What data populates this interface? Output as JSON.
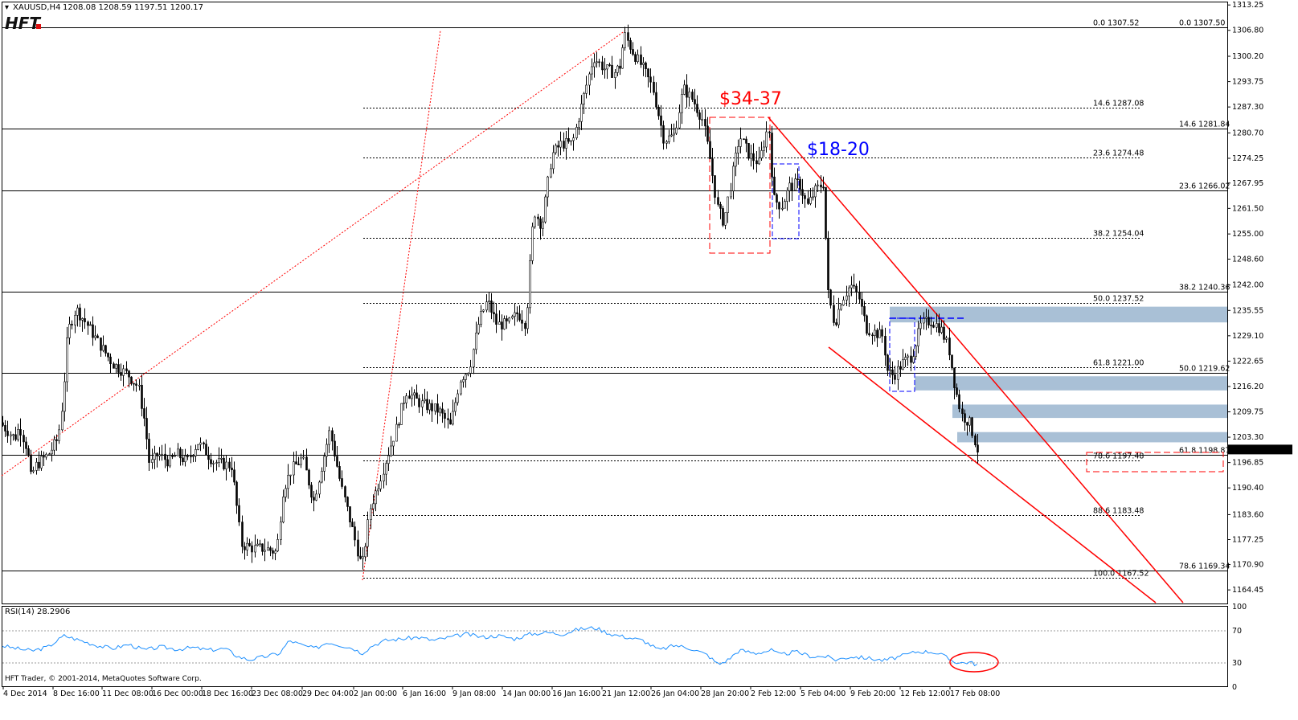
{
  "header": {
    "symbol": "XAUUSD,H4",
    "ohlc": "1208.08 1208.59 1197.51 1200.17",
    "logo": "HFT"
  },
  "indicator_label": "RSI(14) 28.2906",
  "copyright": "HFT Trader, © 2001-2014, MetaQuotes Software Corp.",
  "annotations": {
    "big_move": "$34-37",
    "small_move": "$18-20"
  },
  "colors": {
    "red": "#ff0000",
    "blue": "#0000ff",
    "zone": "#a9c0d6",
    "rsi": "#1e90ff"
  },
  "chart_data": {
    "type": "candlestick",
    "instrument": "XAUUSD",
    "timeframe": "H4",
    "price_axis": {
      "ylim": [
        1161.0,
        1313.9
      ],
      "ticks": [
        "1313.25",
        "1306.80",
        "1300.20",
        "1293.75",
        "1287.30",
        "1280.70",
        "1274.25",
        "1267.95",
        "1261.50",
        "1255.00",
        "1248.60",
        "1242.00",
        "1235.55",
        "1229.10",
        "1222.65",
        "1216.20",
        "1209.75",
        "1203.30",
        "1196.85",
        "1190.40",
        "1183.60",
        "1177.25",
        "1170.90",
        "1164.45"
      ],
      "current_price": "1200.17"
    },
    "time_axis": {
      "labels": [
        "4 Dec 2014",
        "8 Dec 16:00",
        "11 Dec 08:00",
        "16 Dec 00:00",
        "18 Dec 16:00",
        "23 Dec 08:00",
        "29 Dec 04:00",
        "2 Jan 00:00",
        "6 Jan 16:00",
        "9 Jan 08:00",
        "14 Jan 00:00",
        "16 Jan 16:00",
        "21 Jan 12:00",
        "26 Jan 04:00",
        "28 Jan 20:00",
        "2 Feb 12:00",
        "5 Feb 04:00",
        "9 Feb 20:00",
        "12 Feb 12:00",
        "17 Feb 08:00"
      ]
    },
    "price_path": [
      [
        0,
        1207
      ],
      [
        18,
        1203
      ],
      [
        24,
        1206
      ],
      [
        34,
        1200
      ],
      [
        38,
        1193
      ],
      [
        44,
        1196
      ],
      [
        60,
        1199
      ],
      [
        72,
        1203
      ],
      [
        78,
        1213
      ],
      [
        84,
        1230
      ],
      [
        94,
        1236
      ],
      [
        108,
        1232
      ],
      [
        120,
        1228
      ],
      [
        140,
        1222
      ],
      [
        160,
        1219
      ],
      [
        172,
        1216
      ],
      [
        180,
        1207
      ],
      [
        186,
        1196
      ],
      [
        196,
        1199
      ],
      [
        210,
        1197
      ],
      [
        220,
        1199
      ],
      [
        232,
        1197
      ],
      [
        246,
        1202
      ],
      [
        266,
        1197
      ],
      [
        288,
        1196
      ],
      [
        300,
        1176
      ],
      [
        316,
        1175
      ],
      [
        330,
        1175
      ],
      [
        344,
        1174
      ],
      [
        352,
        1190
      ],
      [
        362,
        1195
      ],
      [
        376,
        1198
      ],
      [
        390,
        1187
      ],
      [
        410,
        1205
      ],
      [
        424,
        1191
      ],
      [
        438,
        1180
      ],
      [
        450,
        1170
      ],
      [
        460,
        1185
      ],
      [
        476,
        1195
      ],
      [
        492,
        1205
      ],
      [
        505,
        1215
      ],
      [
        522,
        1212
      ],
      [
        546,
        1210
      ],
      [
        560,
        1206
      ],
      [
        572,
        1218
      ],
      [
        584,
        1221
      ],
      [
        596,
        1233
      ],
      [
        606,
        1238
      ],
      [
        618,
        1232
      ],
      [
        632,
        1232
      ],
      [
        644,
        1235
      ],
      [
        654,
        1232
      ],
      [
        660,
        1250
      ],
      [
        664,
        1261
      ],
      [
        674,
        1257
      ],
      [
        686,
        1275
      ],
      [
        698,
        1278
      ],
      [
        712,
        1278
      ],
      [
        726,
        1290
      ],
      [
        738,
        1300
      ],
      [
        752,
        1297
      ],
      [
        764,
        1296
      ],
      [
        772,
        1298
      ],
      [
        776,
        1306
      ],
      [
        788,
        1301
      ],
      [
        800,
        1297
      ],
      [
        812,
        1292
      ],
      [
        826,
        1279
      ],
      [
        838,
        1280
      ],
      [
        850,
        1292
      ],
      [
        862,
        1289
      ],
      [
        874,
        1284
      ],
      [
        884,
        1273
      ],
      [
        892,
        1262
      ],
      [
        900,
        1258
      ],
      [
        912,
        1271
      ],
      [
        920,
        1280
      ],
      [
        932,
        1275
      ],
      [
        944,
        1273
      ],
      [
        956,
        1283
      ],
      [
        962,
        1264
      ],
      [
        972,
        1262
      ],
      [
        982,
        1267
      ],
      [
        994,
        1268
      ],
      [
        1004,
        1262
      ],
      [
        1014,
        1266
      ],
      [
        1024,
        1268
      ],
      [
        1030,
        1240
      ],
      [
        1038,
        1232
      ],
      [
        1046,
        1238
      ],
      [
        1058,
        1242
      ],
      [
        1068,
        1239
      ],
      [
        1078,
        1231
      ],
      [
        1088,
        1230
      ],
      [
        1098,
        1229
      ],
      [
        1104,
        1220
      ],
      [
        1112,
        1219
      ],
      [
        1122,
        1222
      ],
      [
        1134,
        1224
      ],
      [
        1146,
        1232
      ],
      [
        1158,
        1233
      ],
      [
        1170,
        1231
      ],
      [
        1180,
        1226
      ],
      [
        1188,
        1216
      ],
      [
        1196,
        1209
      ],
      [
        1206,
        1207
      ],
      [
        1216,
        1200
      ]
    ],
    "horizontal_levels": [
      {
        "fib": "0.0",
        "price": "1307.50",
        "style": "solid"
      },
      {
        "fib": "14.6",
        "price": "1281.84",
        "style": "solid"
      },
      {
        "fib": "23.6",
        "price": "1266.02",
        "style": "solid"
      },
      {
        "fib": "38.2",
        "price": "1240.36",
        "style": "solid"
      },
      {
        "fib": "50.0",
        "price": "1219.62",
        "style": "solid"
      },
      {
        "fib": "61.8",
        "price": "1198.87",
        "style": "solid"
      },
      {
        "fib": "78.6",
        "price": "1169.34",
        "style": "solid"
      }
    ],
    "dotted_fib_levels": [
      {
        "fib": "0.0",
        "price": "1307.52"
      },
      {
        "fib": "14.6",
        "price": "1287.08"
      },
      {
        "fib": "23.6",
        "price": "1274.48"
      },
      {
        "fib": "38.2",
        "price": "1254.04"
      },
      {
        "fib": "50.0",
        "price": "1237.52"
      },
      {
        "fib": "61.8",
        "price": "1221.00"
      },
      {
        "fib": "78.6",
        "price": "1197.48"
      },
      {
        "fib": "88.6",
        "price": "1183.48"
      },
      {
        "fib": "100.0",
        "price": "1167.52"
      }
    ],
    "support_zones": [
      [
        1232.5,
        1236.5
      ],
      [
        1215.2,
        1218.8
      ],
      [
        1208.2,
        1211.6
      ],
      [
        1202.0,
        1204.6
      ]
    ],
    "rsi": {
      "name": "RSI(14)",
      "value": "28.2906",
      "ylim": [
        0,
        100
      ],
      "ticks": [
        "100",
        "70",
        "30",
        "0"
      ],
      "levels": [
        70,
        30
      ],
      "path": [
        [
          0,
          52
        ],
        [
          20,
          48
        ],
        [
          40,
          45
        ],
        [
          60,
          50
        ],
        [
          80,
          64
        ],
        [
          100,
          58
        ],
        [
          120,
          52
        ],
        [
          140,
          48
        ],
        [
          160,
          53
        ],
        [
          180,
          46
        ],
        [
          200,
          50
        ],
        [
          220,
          47
        ],
        [
          240,
          49
        ],
        [
          260,
          46
        ],
        [
          280,
          48
        ],
        [
          296,
          38
        ],
        [
          310,
          34
        ],
        [
          330,
          38
        ],
        [
          348,
          42
        ],
        [
          360,
          58
        ],
        [
          376,
          52
        ],
        [
          392,
          48
        ],
        [
          408,
          56
        ],
        [
          424,
          52
        ],
        [
          440,
          48
        ],
        [
          450,
          42
        ],
        [
          464,
          52
        ],
        [
          480,
          58
        ],
        [
          500,
          60
        ],
        [
          520,
          62
        ],
        [
          540,
          58
        ],
        [
          560,
          62
        ],
        [
          580,
          66
        ],
        [
          600,
          62
        ],
        [
          620,
          64
        ],
        [
          640,
          60
        ],
        [
          660,
          66
        ],
        [
          680,
          68
        ],
        [
          700,
          66
        ],
        [
          720,
          72
        ],
        [
          740,
          74
        ],
        [
          760,
          66
        ],
        [
          780,
          62
        ],
        [
          800,
          58
        ],
        [
          820,
          46
        ],
        [
          840,
          52
        ],
        [
          860,
          48
        ],
        [
          880,
          40
        ],
        [
          894,
          28
        ],
        [
          906,
          34
        ],
        [
          920,
          46
        ],
        [
          940,
          42
        ],
        [
          960,
          46
        ],
        [
          970,
          40
        ],
        [
          990,
          44
        ],
        [
          1010,
          38
        ],
        [
          1028,
          38
        ],
        [
          1040,
          34
        ],
        [
          1060,
          38
        ],
        [
          1080,
          36
        ],
        [
          1100,
          33
        ],
        [
          1120,
          38
        ],
        [
          1140,
          44
        ],
        [
          1160,
          44
        ],
        [
          1172,
          40
        ],
        [
          1182,
          34
        ],
        [
          1194,
          30
        ],
        [
          1206,
          31
        ],
        [
          1216,
          28
        ]
      ]
    }
  }
}
